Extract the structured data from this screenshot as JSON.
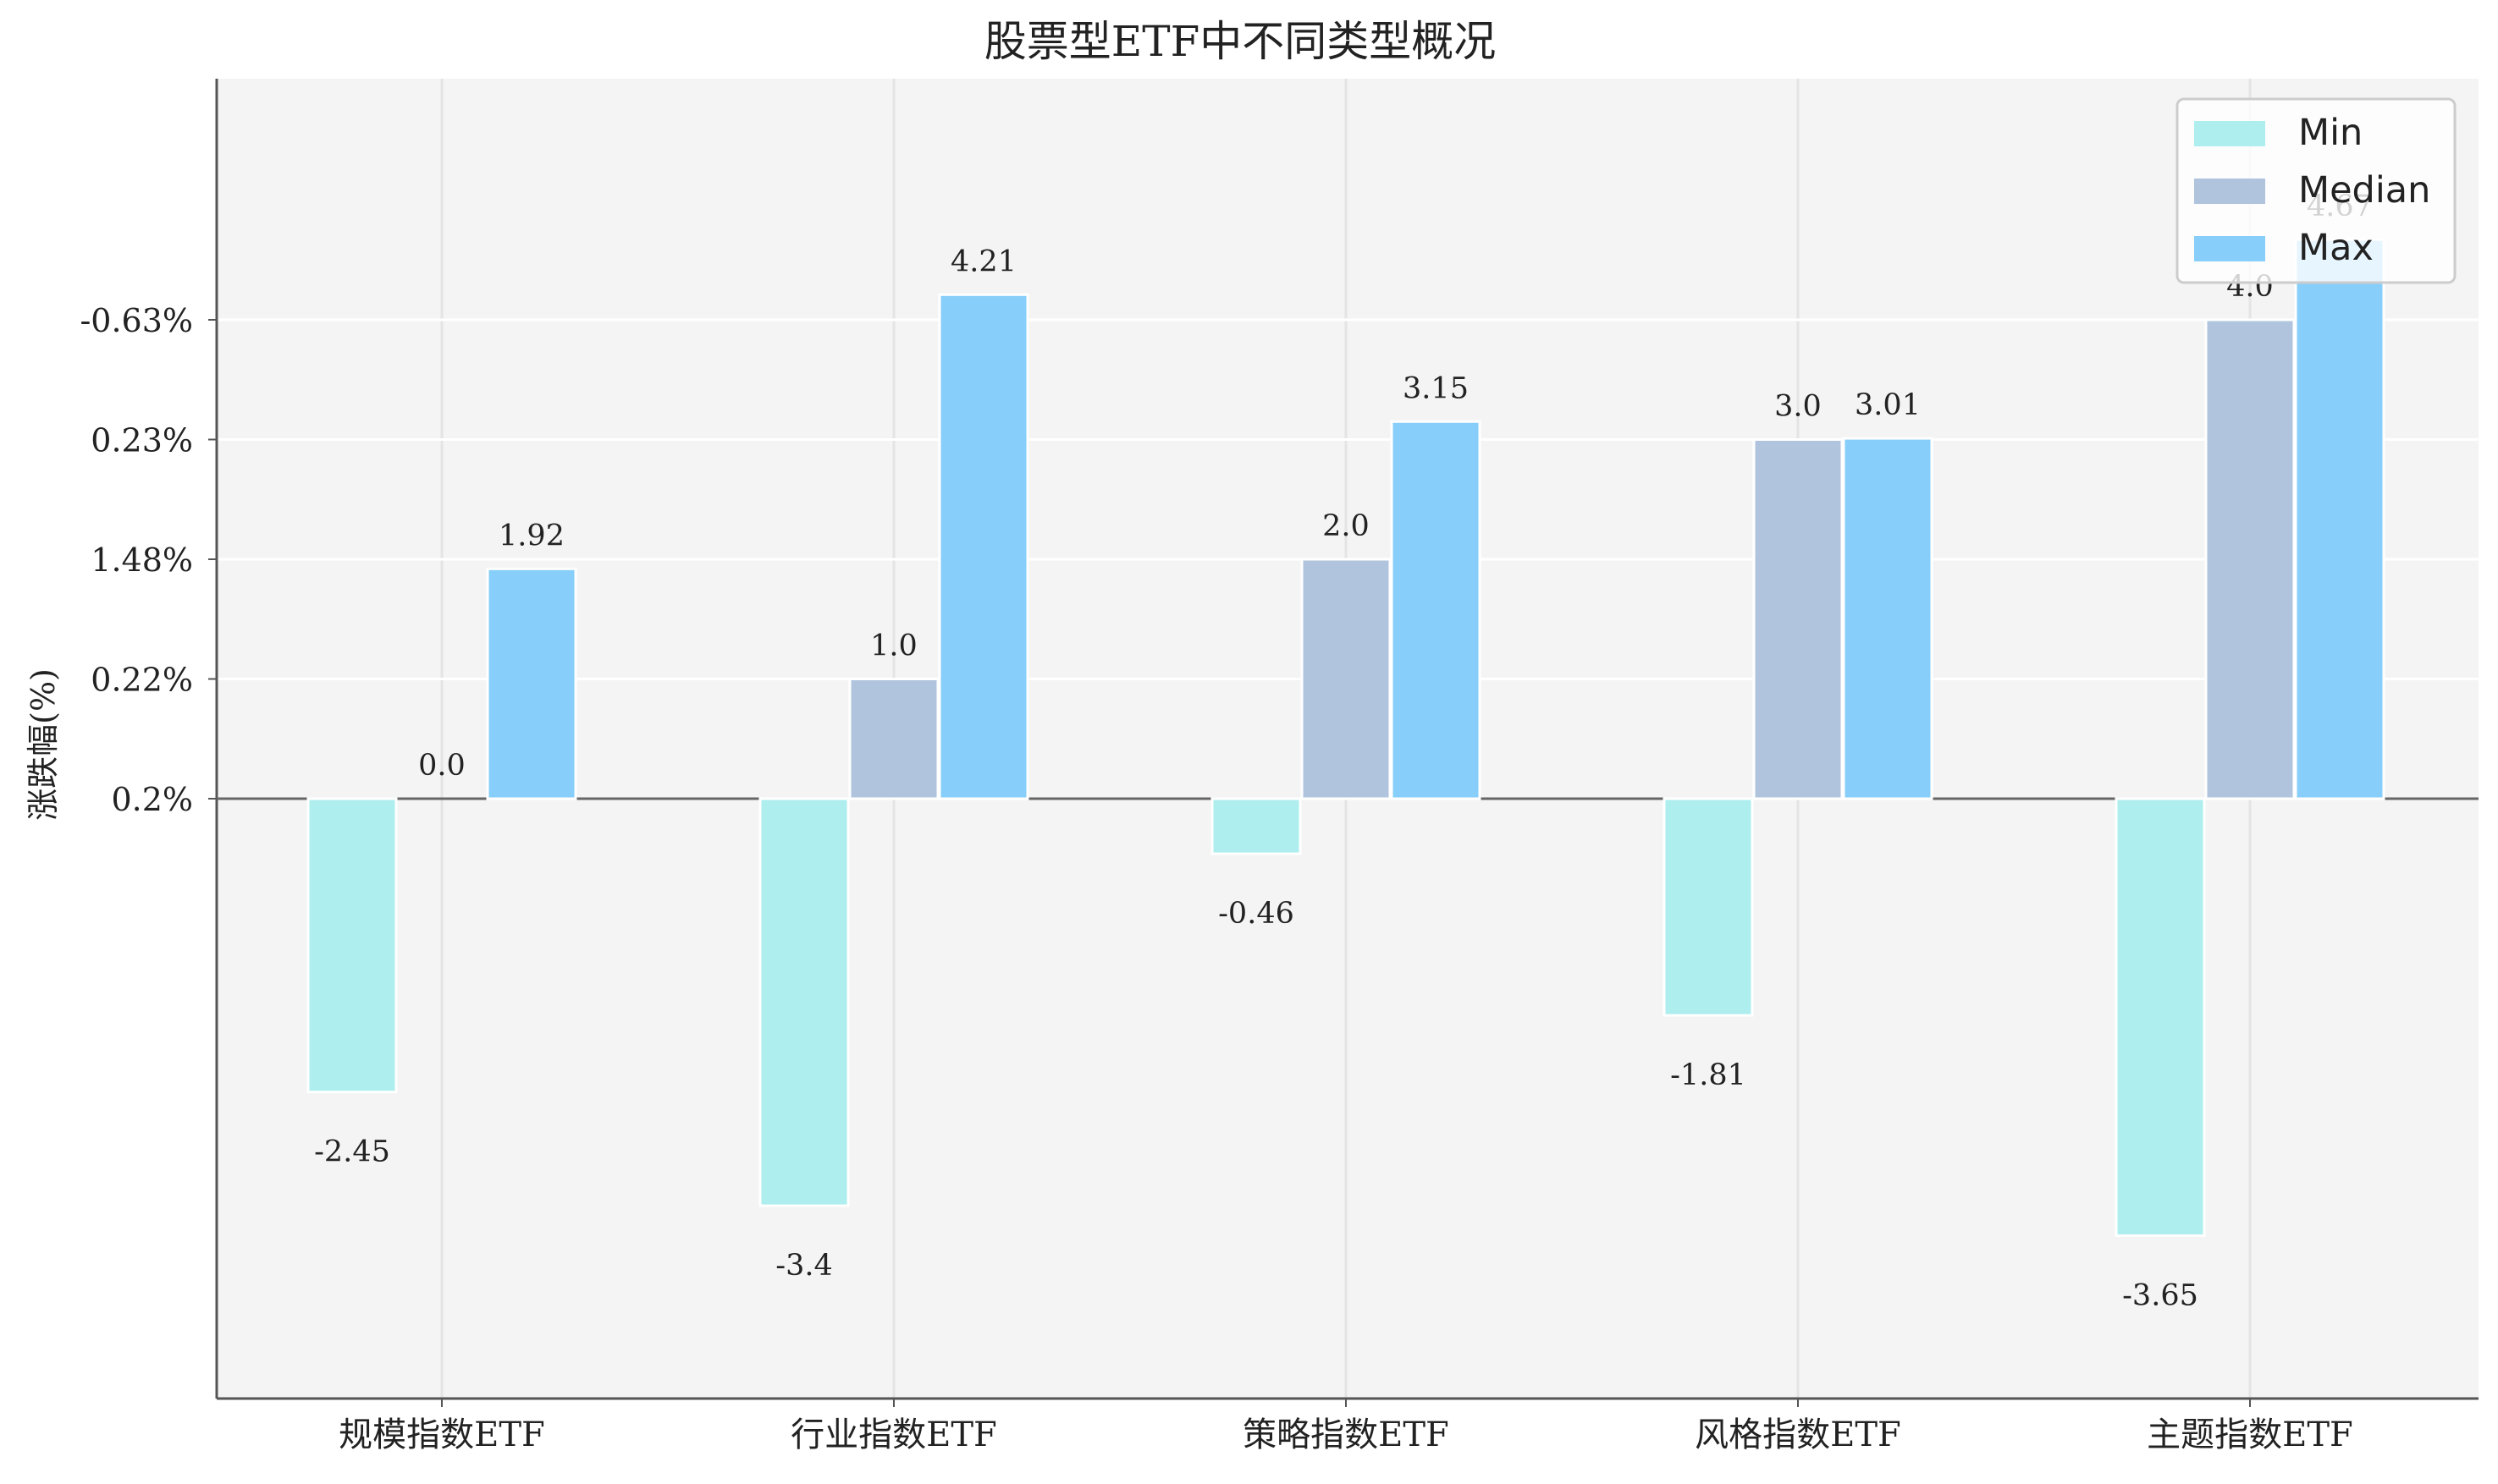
{
  "chart_data": {
    "type": "bar",
    "title": "股票型ETF中不同类型概况",
    "ylabel": "涨跌幅(%)",
    "xlabel": "",
    "categories": [
      "规模指数ETF",
      "行业指数ETF",
      "策略指数ETF",
      "风格指数ETF",
      "主题指数ETF"
    ],
    "series": [
      {
        "name": "Min",
        "values": [
          -2.45,
          -3.4,
          -0.46,
          -1.81,
          -3.65
        ],
        "labels": [
          "-2.45",
          "-3.4",
          "-0.46",
          "-1.81",
          "-3.65"
        ]
      },
      {
        "name": "Median",
        "values": [
          0.0,
          1.0,
          2.0,
          3.0,
          4.0
        ],
        "labels": [
          "0.0",
          "1.0",
          "2.0",
          "3.0",
          "4.0"
        ]
      },
      {
        "name": "Max",
        "values": [
          1.92,
          4.21,
          3.15,
          3.01,
          4.67
        ],
        "labels": [
          "1.92",
          "4.21",
          "3.15",
          "3.01",
          "4.67"
        ]
      }
    ],
    "y_ticks": [
      {
        "value": 0,
        "label": "0.2%"
      },
      {
        "value": 1,
        "label": "0.22%"
      },
      {
        "value": 2,
        "label": "1.48%"
      },
      {
        "value": 3,
        "label": "0.23%"
      },
      {
        "value": 4,
        "label": "-0.63%"
      }
    ],
    "ylim": [
      -5,
      6
    ],
    "grid": true,
    "legend_position": "top-right",
    "colors": {
      "Min": "#afeeee",
      "Median": "#b0c4de",
      "Max": "#87cefa",
      "plot_bg": "#f4f4f4",
      "grid": "#ffffff",
      "axis": "#555555",
      "zero_line": "#666666",
      "label_text": "#222222"
    }
  }
}
